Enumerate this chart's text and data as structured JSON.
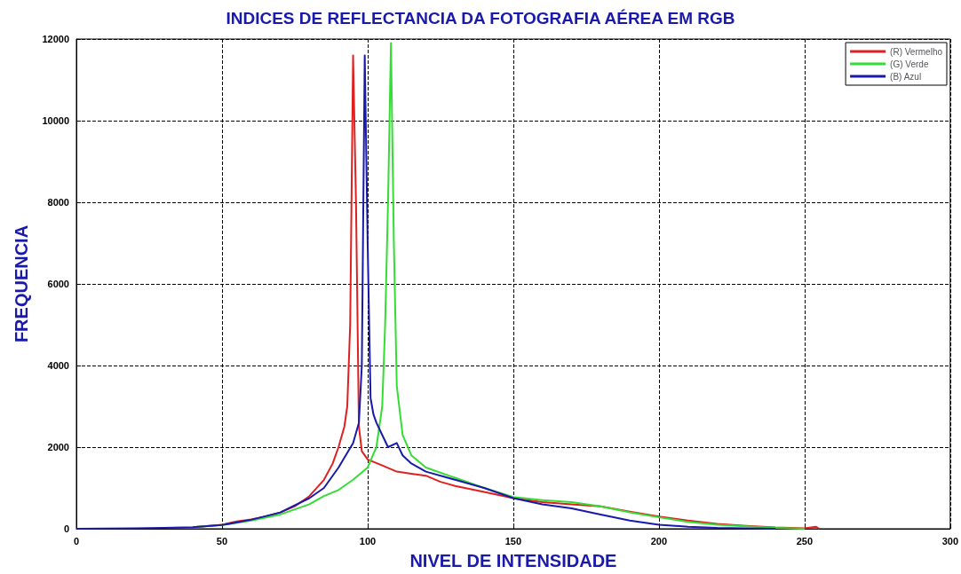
{
  "chart_data": {
    "type": "line",
    "title": "INDICES DE REFLECTANCIA DA FOTOGRAFIA AÉREA EM RGB",
    "xlabel": "NIVEL DE INTENSIDADE",
    "ylabel": "FREQUENCIA",
    "xlim": [
      0,
      300
    ],
    "xticks": [
      0,
      50,
      100,
      150,
      200,
      250,
      300
    ],
    "ylim": [
      0,
      12000
    ],
    "yticks": [
      0,
      2000,
      4000,
      6000,
      8000,
      10000,
      12000
    ],
    "grid": true,
    "legend": "top right",
    "marker": "none",
    "line_style": "solid",
    "series": [
      {
        "name": "(R) Vermelho",
        "color": "#e02020",
        "x": [
          40,
          50,
          55,
          60,
          65,
          70,
          75,
          80,
          85,
          88,
          90,
          92,
          93,
          94,
          95,
          96,
          97,
          98,
          100,
          105,
          110,
          115,
          120,
          125,
          130,
          140,
          150,
          160,
          170,
          180,
          190,
          200,
          210,
          220,
          230,
          240,
          250,
          254,
          255
        ],
        "values": [
          40,
          100,
          180,
          230,
          300,
          400,
          550,
          800,
          1200,
          1600,
          2000,
          2500,
          3000,
          5000,
          11600,
          8000,
          2500,
          1900,
          1700,
          1550,
          1400,
          1350,
          1300,
          1150,
          1050,
          900,
          750,
          650,
          600,
          550,
          420,
          300,
          200,
          120,
          70,
          30,
          10,
          50,
          0
        ]
      },
      {
        "name": "(G) Verde",
        "color": "#33dd33",
        "x": [
          40,
          50,
          60,
          70,
          80,
          85,
          90,
          95,
          100,
          103,
          105,
          106,
          107,
          108,
          109,
          110,
          112,
          115,
          120,
          130,
          140,
          150,
          160,
          170,
          180,
          190,
          200,
          210,
          220,
          230,
          240,
          250
        ],
        "values": [
          40,
          90,
          200,
          350,
          600,
          800,
          950,
          1200,
          1500,
          2000,
          3000,
          5000,
          8000,
          11900,
          7000,
          3500,
          2300,
          1800,
          1500,
          1250,
          1000,
          780,
          700,
          650,
          550,
          400,
          280,
          170,
          100,
          60,
          20,
          0
        ]
      },
      {
        "name": "(B) Azul",
        "color": "#1a1aaa",
        "x": [
          0,
          20,
          30,
          40,
          50,
          60,
          70,
          80,
          85,
          90,
          95,
          97,
          98,
          99,
          100,
          101,
          102,
          103,
          105,
          107,
          110,
          112,
          115,
          120,
          130,
          140,
          150,
          160,
          170,
          180,
          190,
          200,
          210,
          220,
          230,
          240
        ],
        "values": [
          0,
          10,
          20,
          40,
          90,
          220,
          400,
          750,
          1000,
          1500,
          2100,
          2600,
          4000,
          11600,
          7000,
          3200,
          2800,
          2600,
          2300,
          2000,
          2100,
          1800,
          1600,
          1400,
          1200,
          1000,
          750,
          600,
          500,
          350,
          200,
          100,
          50,
          20,
          10,
          0
        ]
      }
    ]
  }
}
